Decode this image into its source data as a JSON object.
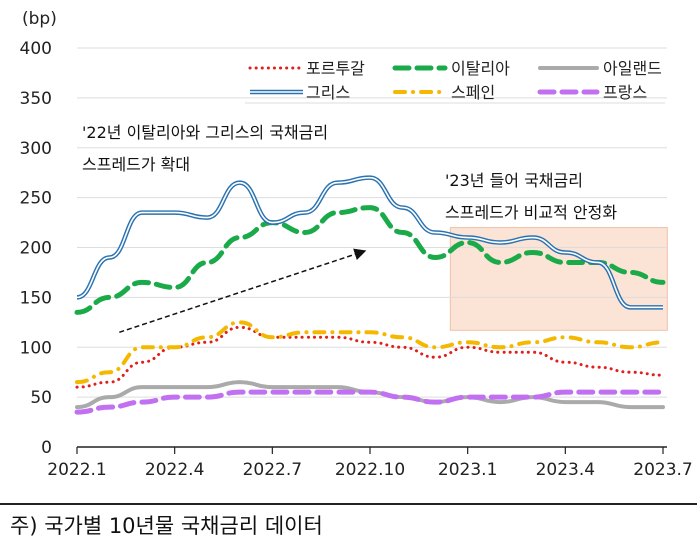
{
  "chart_data": {
    "type": "line",
    "unit_label": "(bp)",
    "ylim": [
      0,
      400
    ],
    "yticks": [
      0,
      50,
      100,
      150,
      200,
      250,
      300,
      350,
      400
    ],
    "xtick_labels": [
      "2022.1",
      "2022.4",
      "2022.7",
      "2022.10",
      "2023.1",
      "2023.4",
      "2023.7"
    ],
    "x": [
      "2022-01",
      "2022-02",
      "2022-03",
      "2022-04",
      "2022-05",
      "2022-06",
      "2022-07",
      "2022-08",
      "2022-09",
      "2022-10",
      "2022-11",
      "2022-12",
      "2023-01",
      "2023-02",
      "2023-03",
      "2023-04",
      "2023-05",
      "2023-06",
      "2023-07"
    ],
    "grid": true,
    "legend_position": "top-right",
    "series": [
      {
        "name": "포르투갈",
        "color": "#e0201a",
        "style": "dotted",
        "values": [
          60,
          65,
          85,
          100,
          105,
          120,
          110,
          110,
          110,
          105,
          100,
          90,
          100,
          95,
          95,
          85,
          80,
          75,
          72
        ]
      },
      {
        "name": "이탈리아",
        "color": "#1aaa4a",
        "style": "dashed",
        "values": [
          135,
          150,
          165,
          160,
          185,
          210,
          225,
          215,
          235,
          240,
          215,
          190,
          205,
          185,
          195,
          185,
          185,
          175,
          165
        ]
      },
      {
        "name": "아일랜드",
        "color": "#aaaaaa",
        "style": "solid",
        "values": [
          40,
          50,
          60,
          60,
          60,
          65,
          60,
          60,
          60,
          55,
          50,
          45,
          50,
          45,
          50,
          45,
          45,
          40,
          40
        ]
      },
      {
        "name": "그리스",
        "color": "#2a72b0",
        "style": "double",
        "values": [
          150,
          190,
          235,
          235,
          230,
          265,
          225,
          235,
          265,
          270,
          240,
          215,
          210,
          205,
          210,
          195,
          185,
          140,
          140
        ]
      },
      {
        "name": "스페인",
        "color": "#f5b800",
        "style": "dash-dot",
        "values": [
          65,
          75,
          100,
          100,
          110,
          125,
          110,
          115,
          115,
          115,
          110,
          100,
          105,
          100,
          105,
          110,
          105,
          100,
          105
        ]
      },
      {
        "name": "프랑스",
        "color": "#c070f0",
        "style": "dashed",
        "values": [
          35,
          40,
          45,
          50,
          50,
          55,
          55,
          55,
          55,
          55,
          50,
          45,
          50,
          50,
          50,
          55,
          55,
          55,
          55
        ]
      }
    ],
    "annotations": [
      {
        "lines": [
          "'22년 이탈리아와 그리스의 국채금리",
          "스프레드가 확대"
        ]
      },
      {
        "lines": [
          "'23년 들어 국채금리",
          "스프레드가 비교적 안정화"
        ]
      }
    ],
    "arrow": {
      "from": [
        "2022-02-10",
        115
      ],
      "to": [
        "2022-09-25",
        196
      ]
    },
    "shaded_region": {
      "x": [
        "2022-12-15",
        "2023-07-05"
      ],
      "y": [
        117,
        220
      ],
      "color": "#fbe3d6"
    }
  },
  "note": "주) 국가별 10년물 국채금리 데이터"
}
